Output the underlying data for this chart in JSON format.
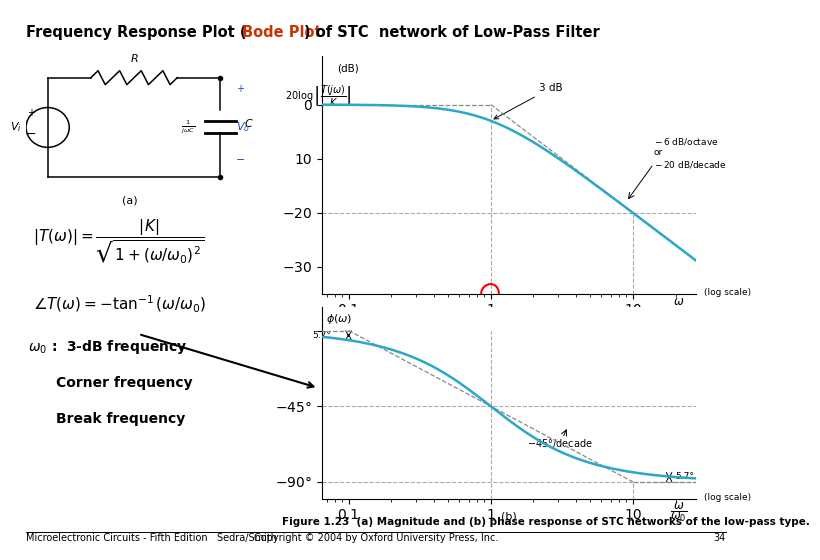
{
  "bg_color": "#ffffff",
  "plot_color": "#29a8c8",
  "asymptote_color": "#888888",
  "dashed_color": "#aaaaaa",
  "title_fontsize": 10.5,
  "fig1_caption": "Figure 1.23  (a) Magnitude and (b) phase response of STC networks of the low-pass type.",
  "footer_left": "Microelectronic Circuits - Fifth Edition   Sedra/Smith",
  "footer_right": "Copyright © 2004 by Oxford University Press, Inc.",
  "footer_page": "34"
}
